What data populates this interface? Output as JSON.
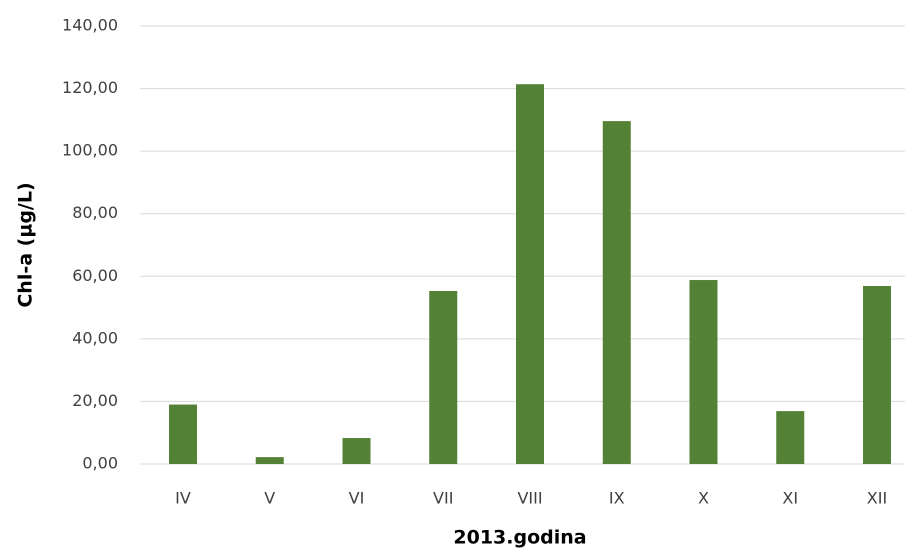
{
  "chart_data": {
    "type": "bar",
    "xlabel": "2013.godina",
    "ylabel": "Chl-a (µg/L)",
    "categories": [
      "IV",
      "V",
      "VI",
      "VII",
      "VIII",
      "IX",
      "X",
      "XI",
      "XII"
    ],
    "values": [
      19,
      2.2,
      8.3,
      55.3,
      121.4,
      109.6,
      58.8,
      16.9,
      56.9
    ],
    "color": "#538135",
    "ylim": [
      0,
      140
    ],
    "yticks": [
      {
        "value": 0,
        "label": "0,00"
      },
      {
        "value": 20,
        "label": "20,00"
      },
      {
        "value": 40,
        "label": "40,00"
      },
      {
        "value": 60,
        "label": "60,00"
      },
      {
        "value": 80,
        "label": "80,00"
      },
      {
        "value": 100,
        "label": "100,00"
      },
      {
        "value": 120,
        "label": "120,00"
      },
      {
        "value": 140,
        "label": "140,00"
      }
    ],
    "grid": true
  }
}
